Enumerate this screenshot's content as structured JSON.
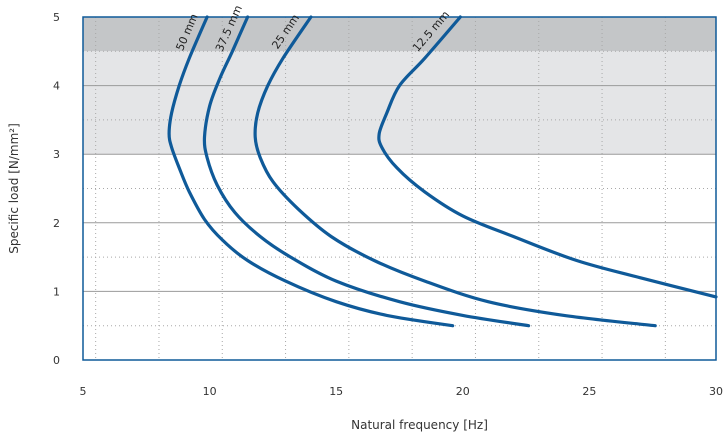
{
  "chart_data": {
    "type": "line",
    "xlabel": "Natural frequency [Hz]",
    "ylabel": "Specific load [N/mm²]",
    "xlim": [
      5,
      30
    ],
    "ylim": [
      0,
      5
    ],
    "x_ticks": [
      "5",
      "10",
      "15",
      "20",
      "25",
      "30"
    ],
    "y_ticks": [
      "0",
      "1",
      "2",
      "3",
      "4",
      "5"
    ],
    "grid": true,
    "legend": "none",
    "shaded_bands": [
      {
        "y_from": 4.5,
        "y_to": 5,
        "color": "#c4c6c8"
      },
      {
        "y_from": 3,
        "y_to": 4.5,
        "color": "#e4e5e7"
      }
    ],
    "line_color": "#0f5a99",
    "series": [
      {
        "name": "50 mm",
        "points": [
          [
            19.6,
            0.5
          ],
          [
            17.0,
            0.65
          ],
          [
            15.0,
            0.85
          ],
          [
            13.0,
            1.15
          ],
          [
            11.5,
            1.45
          ],
          [
            10.5,
            1.75
          ],
          [
            9.8,
            2.05
          ],
          [
            9.2,
            2.45
          ],
          [
            8.8,
            2.8
          ],
          [
            8.5,
            3.1
          ],
          [
            8.4,
            3.3
          ],
          [
            8.5,
            3.6
          ],
          [
            8.8,
            4.0
          ],
          [
            9.2,
            4.4
          ],
          [
            9.9,
            5.0
          ]
        ]
      },
      {
        "name": "37.5 mm",
        "points": [
          [
            22.6,
            0.5
          ],
          [
            20.0,
            0.65
          ],
          [
            17.5,
            0.85
          ],
          [
            15.0,
            1.15
          ],
          [
            13.2,
            1.5
          ],
          [
            12.0,
            1.8
          ],
          [
            11.0,
            2.15
          ],
          [
            10.3,
            2.55
          ],
          [
            9.9,
            2.95
          ],
          [
            9.8,
            3.25
          ],
          [
            10.0,
            3.7
          ],
          [
            10.4,
            4.1
          ],
          [
            10.9,
            4.5
          ],
          [
            11.5,
            5.0
          ]
        ]
      },
      {
        "name": "25 mm",
        "points": [
          [
            27.6,
            0.5
          ],
          [
            24.0,
            0.65
          ],
          [
            21.0,
            0.85
          ],
          [
            18.5,
            1.15
          ],
          [
            16.5,
            1.45
          ],
          [
            14.8,
            1.8
          ],
          [
            13.5,
            2.2
          ],
          [
            12.5,
            2.6
          ],
          [
            12.0,
            2.95
          ],
          [
            11.8,
            3.25
          ],
          [
            11.9,
            3.6
          ],
          [
            12.3,
            4.0
          ],
          [
            12.9,
            4.4
          ],
          [
            14.0,
            5.0
          ]
        ]
      },
      {
        "name": "12.5 mm",
        "points": [
          [
            30.0,
            0.92
          ],
          [
            27.0,
            1.2
          ],
          [
            24.5,
            1.45
          ],
          [
            22.0,
            1.8
          ],
          [
            20.0,
            2.1
          ],
          [
            18.5,
            2.45
          ],
          [
            17.4,
            2.8
          ],
          [
            16.8,
            3.1
          ],
          [
            16.7,
            3.3
          ],
          [
            17.0,
            3.6
          ],
          [
            17.5,
            4.0
          ],
          [
            18.5,
            4.4
          ],
          [
            19.9,
            5.0
          ]
        ]
      }
    ]
  }
}
